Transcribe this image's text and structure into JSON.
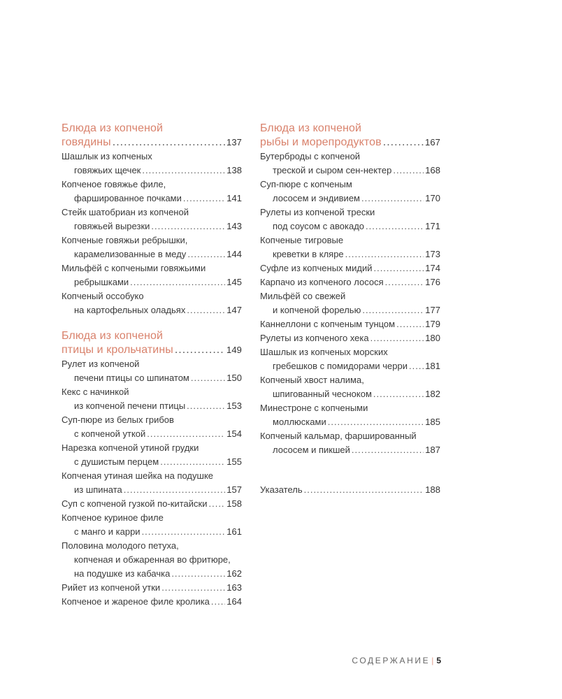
{
  "columns": [
    {
      "sections": [
        {
          "heading": [
            "Блюда из копченой",
            "говядины"
          ],
          "page": "137",
          "entries": [
            {
              "lines": [
                "Шашлык из копченых",
                "говяжьих щечек"
              ],
              "page": "138"
            },
            {
              "lines": [
                "Копченое говяжье филе,",
                "фаршированное почками"
              ],
              "page": "141"
            },
            {
              "lines": [
                "Стейк шатобриан из копченой",
                "говяжьей вырезки"
              ],
              "page": "143"
            },
            {
              "lines": [
                "Копченые говяжьи ребрышки,",
                "карамелизованные в меду"
              ],
              "page": "144"
            },
            {
              "lines": [
                "Мильфёй с копчеными говяжьими",
                "ребрышками"
              ],
              "page": "145"
            },
            {
              "lines": [
                "Копченый оссобуко",
                "на картофельных оладьях"
              ],
              "page": "147"
            }
          ]
        },
        {
          "heading": [
            "Блюда из копченой",
            "птицы и крольчатины"
          ],
          "page": "149",
          "entries": [
            {
              "lines": [
                "Рулет из копченой",
                "печени птицы со шпинатом"
              ],
              "page": "150"
            },
            {
              "lines": [
                "Кекс с начинкой",
                "из копченой печени птицы"
              ],
              "page": "153"
            },
            {
              "lines": [
                "Суп-пюре из белых грибов",
                "с копченой уткой"
              ],
              "page": "154"
            },
            {
              "lines": [
                "Нарезка копченой утиной грудки",
                "с душистым перцем"
              ],
              "page": "155"
            },
            {
              "lines": [
                "Копченая утиная шейка на подушке",
                "из шпината"
              ],
              "page": "157"
            },
            {
              "lines": [
                "Суп с копченой гузкой по-китайски"
              ],
              "page": "158"
            },
            {
              "lines": [
                "Копченое куриное филе",
                "с манго и карри"
              ],
              "page": "161"
            },
            {
              "lines": [
                "Половина молодого петуха,",
                "копченая и обжаренная во фритюре,",
                "на подушке из кабачка"
              ],
              "page": "162"
            },
            {
              "lines": [
                "Рийет из копченой утки"
              ],
              "page": "163"
            },
            {
              "lines": [
                "Копченое и жареное филе кролика"
              ],
              "page": "164"
            }
          ]
        }
      ]
    },
    {
      "sections": [
        {
          "heading": [
            "Блюда из копченой",
            "рыбы и морепродуктов"
          ],
          "page": "167",
          "entries": [
            {
              "lines": [
                "Бутерброды с копченой",
                "треской и сыром сен-нектер"
              ],
              "page": "168"
            },
            {
              "lines": [
                "Суп-пюре с копченым",
                "лососем и эндивием"
              ],
              "page": "170"
            },
            {
              "lines": [
                "Рулеты из копченой трески",
                "под соусом с авокадо"
              ],
              "page": "171"
            },
            {
              "lines": [
                "Копченые тигровые",
                "креветки в кляре"
              ],
              "page": "173"
            },
            {
              "lines": [
                "Суфле из копченых мидий"
              ],
              "page": "174"
            },
            {
              "lines": [
                "Карпачо из копченого лосося"
              ],
              "page": "176"
            },
            {
              "lines": [
                "Мильфёй со свежей",
                "и копченой форелью"
              ],
              "page": "177"
            },
            {
              "lines": [
                "Каннеллони с копченым тунцом"
              ],
              "page": "179"
            },
            {
              "lines": [
                "Рулеты из копченого хека"
              ],
              "page": "180"
            },
            {
              "lines": [
                "Шашлык из копченых морских",
                "гребешков с помидорами черри"
              ],
              "page": "181"
            },
            {
              "lines": [
                "Копченый хвост налима,",
                "шпигованный чесноком"
              ],
              "page": "182"
            },
            {
              "lines": [
                "Минестроне с копчеными",
                "моллюсками"
              ],
              "page": "185"
            },
            {
              "lines": [
                "Копченый кальмар, фаршированный",
                "лососем и пикшей"
              ],
              "page": "187"
            }
          ]
        }
      ],
      "extra": {
        "label": "Указатель",
        "page": "188"
      }
    }
  ],
  "footer": {
    "section": "СОДЕРЖАНИЕ",
    "separator": "|",
    "page_number": "5"
  },
  "colors": {
    "heading": "#d9826c",
    "text": "#3a3a3a"
  }
}
